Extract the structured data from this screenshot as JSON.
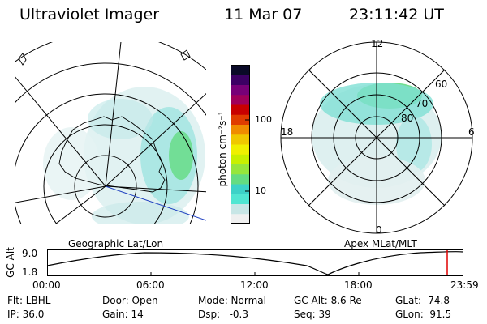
{
  "header": {
    "title": "Ultraviolet Imager",
    "date": "11 Mar 07",
    "time": "23:11:42 UT"
  },
  "geo_panel": {
    "label": "Geographic Lat/Lon"
  },
  "mag_panel": {
    "label": "Apex MLat/MLT",
    "mlt_labels": [
      "12",
      "18",
      "6",
      "0"
    ],
    "lat_labels": [
      "60",
      "70",
      "80"
    ]
  },
  "colorbar": {
    "unit_label": "photon cm⁻²s⁻¹",
    "ticks": [
      "100",
      "10"
    ],
    "colors": [
      "#f0f0f0",
      "#c8e6e6",
      "#50e6d2",
      "#3cd2c8",
      "#64dc82",
      "#96e63c",
      "#c8f000",
      "#f0f000",
      "#f0c800",
      "#f08c00",
      "#e03c00",
      "#c80000",
      "#a0005a",
      "#780078",
      "#3c0064",
      "#0a0a28"
    ]
  },
  "altitude_plot": {
    "axis_label": "GC Alt",
    "y_ticks": [
      "9.0",
      "1.8"
    ],
    "x_ticks": [
      "00:00",
      "06:00",
      "12:00",
      "18:00",
      "23:59"
    ],
    "marker_color": "#e00000"
  },
  "info": {
    "filter": "Flt: LBHL",
    "ip": "IP: 36.0",
    "door": "Door: Open",
    "gain": "Gain: 14",
    "mode": "Mode: Normal",
    "dsp": "Dsp:   -0.3",
    "gc_alt": "GC Alt: 8.6 Re",
    "seq": "Seq: 39",
    "glat": "GLat: -74.8",
    "glon": "GLon:  91.5"
  }
}
